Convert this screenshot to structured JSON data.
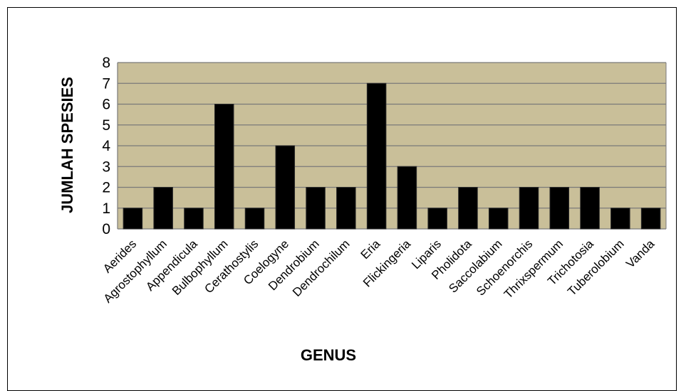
{
  "chart_data": {
    "type": "bar",
    "title": "",
    "xlabel": "GENUS",
    "ylabel": "JUMLAH SPESIES",
    "ylim": [
      0,
      8
    ],
    "yticks": [
      0,
      1,
      2,
      3,
      4,
      5,
      6,
      7,
      8
    ],
    "grid": true,
    "legend": "none",
    "colors": {
      "plot_background": "#c9bf99",
      "bar": "#000000",
      "gridline": "#7a7a7a"
    },
    "categories": [
      "Aerides",
      "Agrostophyllum",
      "Appendicula",
      "Bulbophyllum",
      "Cerathostylis",
      "Coelogyne",
      "Dendrobium",
      "Dendrochilum",
      "Eria",
      "Flickingeria",
      "Liparis",
      "Pholidota",
      "Saccolabium",
      "Schoenorchis",
      "Thrixspermum",
      "Trichotosia",
      "Tuberolobium",
      "Vanda"
    ],
    "values": [
      1,
      2,
      1,
      6,
      1,
      4,
      2,
      2,
      7,
      3,
      1,
      2,
      1,
      2,
      2,
      2,
      1,
      1
    ]
  }
}
